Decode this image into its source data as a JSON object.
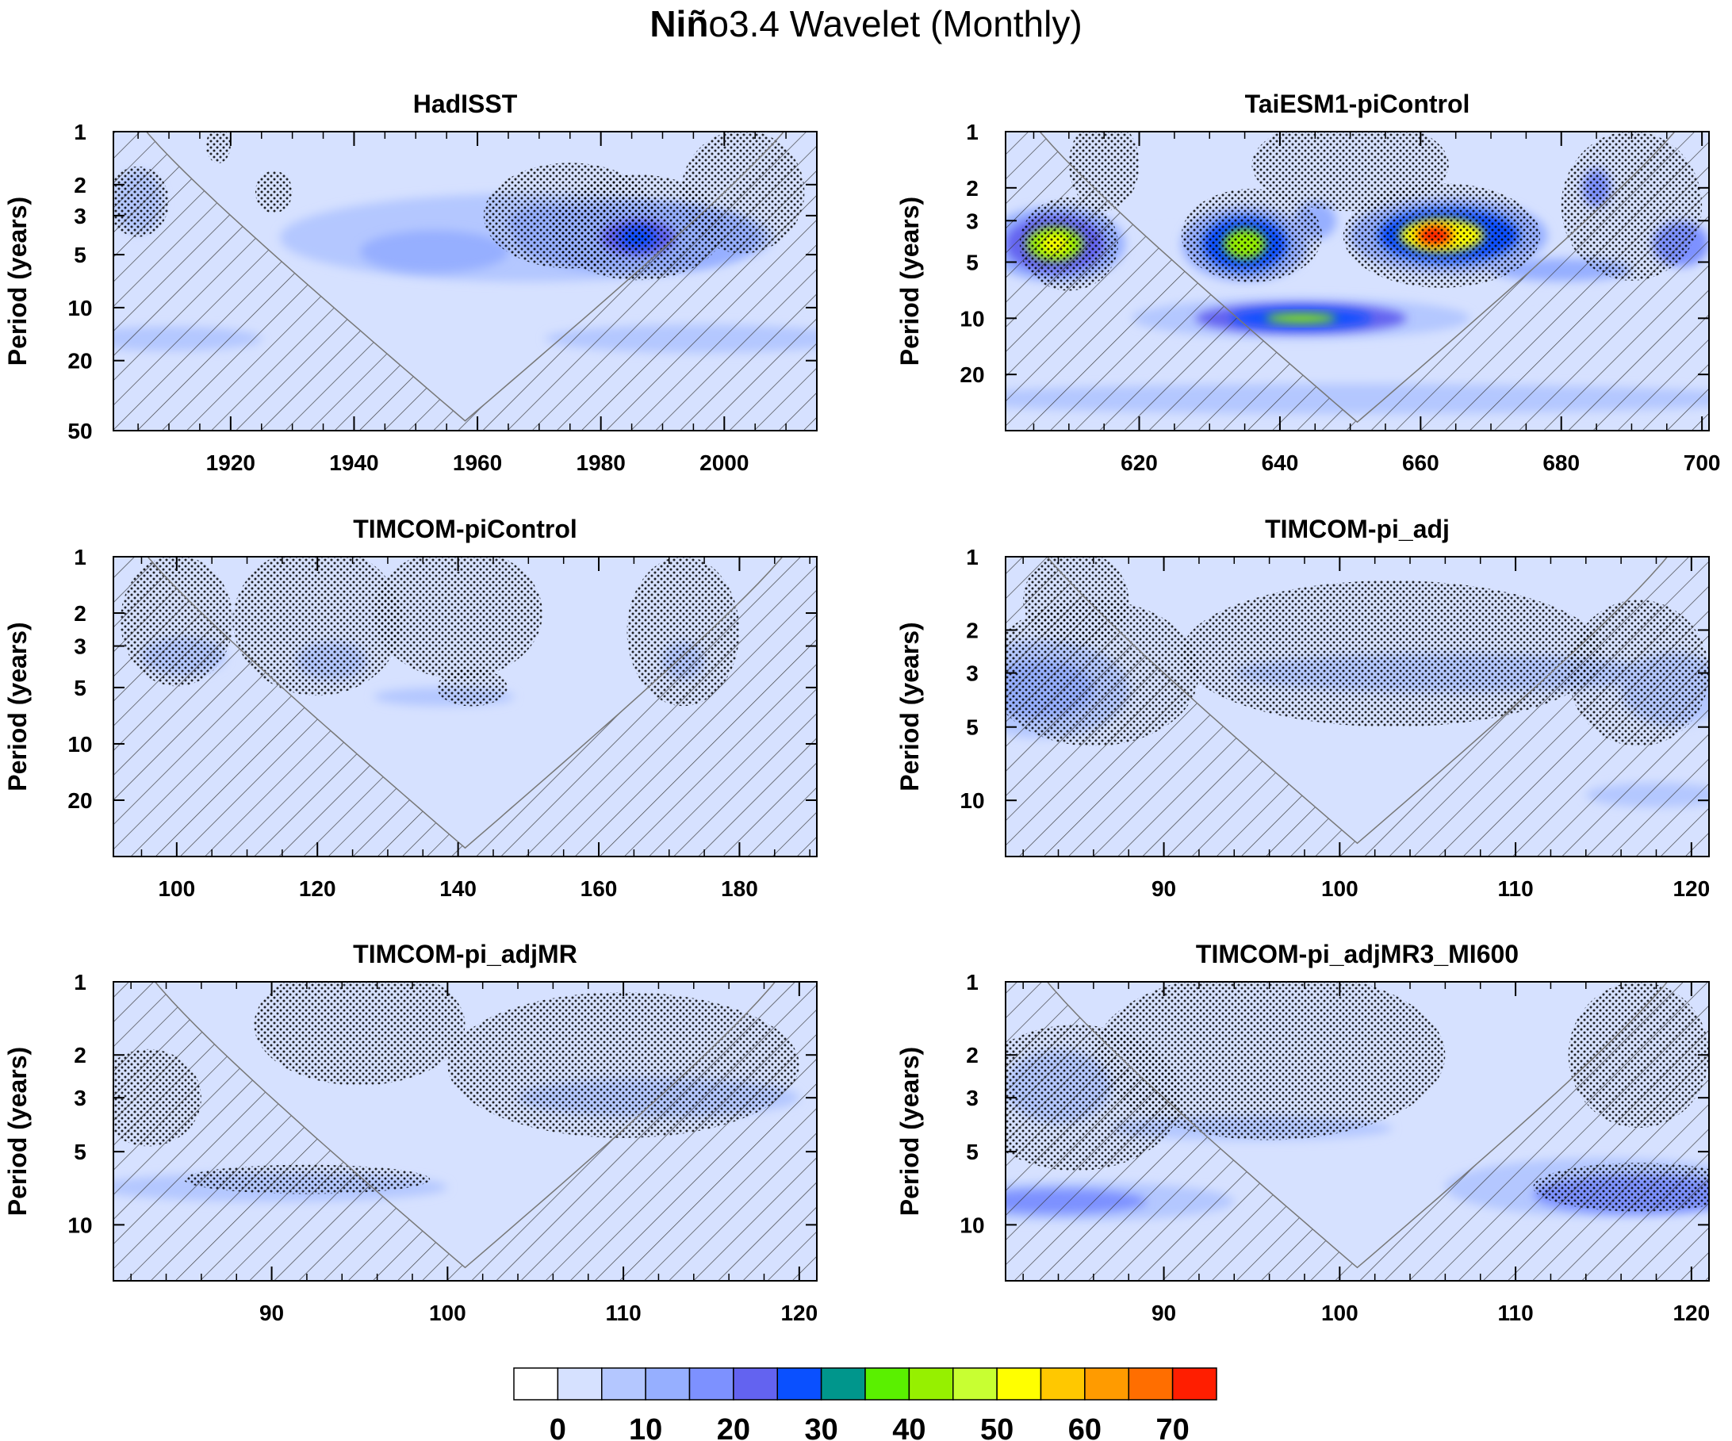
{
  "figure": {
    "title_bold": "Niñ",
    "title_rest": "o3.4 Wavelet (Monthly)"
  },
  "colors": {
    "shade": "#d6e1ff",
    "levels": [
      "#ffffff",
      "#d6e1ff",
      "#b4c7ff",
      "#96afff",
      "#7d91ff",
      "#6363f0",
      "#0a50ff",
      "#00968c",
      "#5af000",
      "#96f000",
      "#c8ff32",
      "#ffff00",
      "#ffc800",
      "#ff9b00",
      "#ff6e00",
      "#ff1e00"
    ]
  },
  "colorbar": {
    "labels": [
      "0",
      "10",
      "20",
      "30",
      "40",
      "50",
      "60",
      "70"
    ],
    "levels": [
      0,
      5,
      10,
      15,
      20,
      25,
      30,
      35,
      40,
      45,
      50,
      55,
      60,
      65,
      70
    ]
  },
  "chart_data": [
    {
      "type": "heatmap",
      "title": "HadISST",
      "ylabel": "Period (years)",
      "xlim": [
        1901,
        2015
      ],
      "ylim": [
        1,
        50
      ],
      "yscale": "log",
      "coi_min_period": 44,
      "xticks": [
        1920,
        1940,
        1960,
        1980,
        2000
      ],
      "yticks": [
        1,
        2,
        3,
        5,
        10,
        20,
        50
      ],
      "blobs": [
        {
          "x": 1968,
          "y": 4,
          "rx": 40,
          "ry": 0.25,
          "level": 2
        },
        {
          "x": 1953,
          "y": 4.8,
          "rx": 12,
          "ry": 0.12,
          "level": 3
        },
        {
          "x": 1986,
          "y": 4,
          "rx": 20,
          "ry": 0.2,
          "level": 3
        },
        {
          "x": 1986,
          "y": 4,
          "rx": 6,
          "ry": 0.1,
          "level": 5
        },
        {
          "x": 1986,
          "y": 4,
          "rx": 3,
          "ry": 0.06,
          "level": 6
        },
        {
          "x": 1971,
          "y": 3.3,
          "rx": 6,
          "ry": 0.1,
          "level": 3
        },
        {
          "x": 1996,
          "y": 15,
          "rx": 25,
          "ry": 0.08,
          "level": 2
        },
        {
          "x": 1910,
          "y": 15,
          "rx": 15,
          "ry": 0.07,
          "level": 2
        },
        {
          "x": 1905,
          "y": 2.5,
          "rx": 4,
          "ry": 0.18,
          "level": 2
        }
      ],
      "stipple": [
        {
          "x": 1905,
          "y": 2.5,
          "rx": 5,
          "ry": 0.2
        },
        {
          "x": 1918,
          "y": 1.2,
          "rx": 2,
          "ry": 0.1
        },
        {
          "x": 1927,
          "y": 2.2,
          "rx": 3,
          "ry": 0.12
        },
        {
          "x": 1975,
          "y": 3,
          "rx": 14,
          "ry": 0.3
        },
        {
          "x": 1986,
          "y": 3.5,
          "rx": 14,
          "ry": 0.3
        },
        {
          "x": 2003,
          "y": 2.2,
          "rx": 10,
          "ry": 0.35
        }
      ]
    },
    {
      "type": "heatmap",
      "title": "TaiESM1-piControl",
      "ylabel": "Period (years)",
      "xlim": [
        601,
        701
      ],
      "ylim": [
        1,
        40
      ],
      "yscale": "log",
      "coi_min_period": 36,
      "xticks": [
        620,
        640,
        660,
        680,
        700
      ],
      "yticks": [
        1,
        2,
        3,
        5,
        10,
        20
      ],
      "blobs": [
        {
          "x": 650,
          "y": 5,
          "rx": 50,
          "ry": 0.2,
          "level": 1
        },
        {
          "x": 608,
          "y": 4,
          "rx": 10,
          "ry": 0.2,
          "level": 3
        },
        {
          "x": 608,
          "y": 4,
          "rx": 7,
          "ry": 0.15,
          "level": 5
        },
        {
          "x": 608,
          "y": 4,
          "rx": 4,
          "ry": 0.09,
          "level": 9
        },
        {
          "x": 608,
          "y": 4,
          "rx": 2,
          "ry": 0.05,
          "level": 11
        },
        {
          "x": 635,
          "y": 4,
          "rx": 9,
          "ry": 0.2,
          "level": 3
        },
        {
          "x": 635,
          "y": 4,
          "rx": 6,
          "ry": 0.14,
          "level": 6
        },
        {
          "x": 635,
          "y": 4,
          "rx": 3,
          "ry": 0.08,
          "level": 9
        },
        {
          "x": 664,
          "y": 3.6,
          "rx": 14,
          "ry": 0.2,
          "level": 3
        },
        {
          "x": 664,
          "y": 3.6,
          "rx": 10,
          "ry": 0.14,
          "level": 6
        },
        {
          "x": 663,
          "y": 3.6,
          "rx": 6,
          "ry": 0.09,
          "level": 11
        },
        {
          "x": 662,
          "y": 3.6,
          "rx": 2.5,
          "ry": 0.05,
          "level": 15
        },
        {
          "x": 643,
          "y": 10,
          "rx": 24,
          "ry": 0.11,
          "level": 2
        },
        {
          "x": 643,
          "y": 10,
          "rx": 15,
          "ry": 0.08,
          "level": 5
        },
        {
          "x": 643,
          "y": 10,
          "rx": 10,
          "ry": 0.05,
          "level": 6
        },
        {
          "x": 643,
          "y": 10,
          "rx": 5,
          "ry": 0.025,
          "level": 9
        },
        {
          "x": 645,
          "y": 3,
          "rx": 3,
          "ry": 0.1,
          "level": 3
        },
        {
          "x": 685,
          "y": 2,
          "rx": 2,
          "ry": 0.1,
          "level": 4
        },
        {
          "x": 697,
          "y": 4,
          "rx": 4,
          "ry": 0.12,
          "level": 4
        },
        {
          "x": 680,
          "y": 5.5,
          "rx": 10,
          "ry": 0.06,
          "level": 3
        },
        {
          "x": 650,
          "y": 27,
          "rx": 60,
          "ry": 0.08,
          "level": 2
        }
      ],
      "stipple": [
        {
          "x": 610,
          "y": 4,
          "rx": 7,
          "ry": 0.25
        },
        {
          "x": 615,
          "y": 1.5,
          "rx": 5,
          "ry": 0.25
        },
        {
          "x": 636,
          "y": 3.6,
          "rx": 10,
          "ry": 0.25
        },
        {
          "x": 663,
          "y": 3.6,
          "rx": 14,
          "ry": 0.28
        },
        {
          "x": 690,
          "y": 2.5,
          "rx": 10,
          "ry": 0.4
        },
        {
          "x": 650,
          "y": 1.5,
          "rx": 14,
          "ry": 0.25
        }
      ]
    },
    {
      "type": "heatmap",
      "title": "TIMCOM-piControl",
      "ylabel": "Period (years)",
      "xlim": [
        91,
        191
      ],
      "ylim": [
        1,
        40
      ],
      "yscale": "log",
      "coi_min_period": 36,
      "xticks": [
        100,
        120,
        140,
        160,
        180
      ],
      "yticks": [
        1,
        2,
        3,
        5,
        10,
        20
      ],
      "blobs": [
        {
          "x": 101,
          "y": 3.4,
          "rx": 6,
          "ry": 0.1,
          "level": 2
        },
        {
          "x": 122,
          "y": 3.6,
          "rx": 5,
          "ry": 0.1,
          "level": 2
        },
        {
          "x": 172,
          "y": 3.6,
          "rx": 3,
          "ry": 0.1,
          "level": 2
        },
        {
          "x": 138,
          "y": 5.6,
          "rx": 10,
          "ry": 0.05,
          "level": 2
        }
      ],
      "stipple": [
        {
          "x": 100,
          "y": 2.2,
          "rx": 8,
          "ry": 0.35
        },
        {
          "x": 120,
          "y": 2.2,
          "rx": 12,
          "ry": 0.4
        },
        {
          "x": 140,
          "y": 2,
          "rx": 12,
          "ry": 0.35
        },
        {
          "x": 142,
          "y": 5,
          "rx": 5,
          "ry": 0.1
        },
        {
          "x": 172,
          "y": 2.5,
          "rx": 8,
          "ry": 0.4
        }
      ]
    },
    {
      "type": "heatmap",
      "title": "TIMCOM-pi_adj",
      "ylabel": "Period (years)",
      "xlim": [
        81,
        121
      ],
      "ylim": [
        1,
        17
      ],
      "yscale": "log",
      "coi_min_period": 15,
      "xticks": [
        90,
        100,
        110,
        120
      ],
      "yticks": [
        1,
        2,
        3,
        5,
        10
      ],
      "blobs": [
        {
          "x": 83,
          "y": 3.5,
          "rx": 5,
          "ry": 0.2,
          "level": 2
        },
        {
          "x": 83,
          "y": 3.5,
          "rx": 3,
          "ry": 0.12,
          "level": 3
        },
        {
          "x": 106,
          "y": 3,
          "rx": 12,
          "ry": 0.08,
          "level": 2
        },
        {
          "x": 119,
          "y": 3.5,
          "rx": 3,
          "ry": 0.15,
          "level": 2
        },
        {
          "x": 118,
          "y": 9.5,
          "rx": 4,
          "ry": 0.05,
          "level": 2
        }
      ],
      "stipple": [
        {
          "x": 86,
          "y": 3,
          "rx": 6,
          "ry": 0.3
        },
        {
          "x": 103,
          "y": 2.5,
          "rx": 12,
          "ry": 0.3
        },
        {
          "x": 117,
          "y": 3,
          "rx": 4,
          "ry": 0.3
        },
        {
          "x": 85,
          "y": 1.5,
          "rx": 3,
          "ry": 0.2
        }
      ]
    },
    {
      "type": "heatmap",
      "title": "TIMCOM-pi_adjMR",
      "ylabel": "Period (years)",
      "xlim": [
        81,
        121
      ],
      "ylim": [
        1,
        17
      ],
      "yscale": "log",
      "coi_min_period": 15,
      "xticks": [
        90,
        100,
        110,
        120
      ],
      "yticks": [
        1,
        2,
        3,
        5,
        10
      ],
      "blobs": [
        {
          "x": 90,
          "y": 7,
          "rx": 10,
          "ry": 0.06,
          "level": 2
        },
        {
          "x": 112,
          "y": 3,
          "rx": 8,
          "ry": 0.08,
          "level": 2
        }
      ],
      "stipple": [
        {
          "x": 92,
          "y": 6.5,
          "rx": 7,
          "ry": 0.06
        },
        {
          "x": 95,
          "y": 1.5,
          "rx": 6,
          "ry": 0.25
        },
        {
          "x": 110,
          "y": 2.2,
          "rx": 10,
          "ry": 0.3
        },
        {
          "x": 83,
          "y": 3,
          "rx": 3,
          "ry": 0.2
        }
      ]
    },
    {
      "type": "heatmap",
      "title": "TIMCOM-pi_adjMR3_MI600",
      "ylabel": "Period (years)",
      "xlim": [
        81,
        121
      ],
      "ylim": [
        1,
        17
      ],
      "yscale": "log",
      "coi_min_period": 15,
      "xticks": [
        90,
        100,
        110,
        120
      ],
      "yticks": [
        1,
        2,
        3,
        5,
        10
      ],
      "blobs": [
        {
          "x": 85,
          "y": 8,
          "rx": 9,
          "ry": 0.08,
          "level": 2
        },
        {
          "x": 84,
          "y": 8,
          "rx": 5,
          "ry": 0.05,
          "level": 4
        },
        {
          "x": 115,
          "y": 7,
          "rx": 9,
          "ry": 0.12,
          "level": 2
        },
        {
          "x": 117,
          "y": 7.5,
          "rx": 6,
          "ry": 0.08,
          "level": 4
        },
        {
          "x": 95,
          "y": 4,
          "rx": 8,
          "ry": 0.05,
          "level": 2
        },
        {
          "x": 84,
          "y": 2.7,
          "rx": 3,
          "ry": 0.15,
          "level": 2
        }
      ],
      "stipple": [
        {
          "x": 85,
          "y": 3,
          "rx": 6,
          "ry": 0.3
        },
        {
          "x": 96,
          "y": 2,
          "rx": 10,
          "ry": 0.35
        },
        {
          "x": 117,
          "y": 7,
          "rx": 6,
          "ry": 0.1
        },
        {
          "x": 117,
          "y": 2,
          "rx": 4,
          "ry": 0.3
        }
      ]
    }
  ]
}
